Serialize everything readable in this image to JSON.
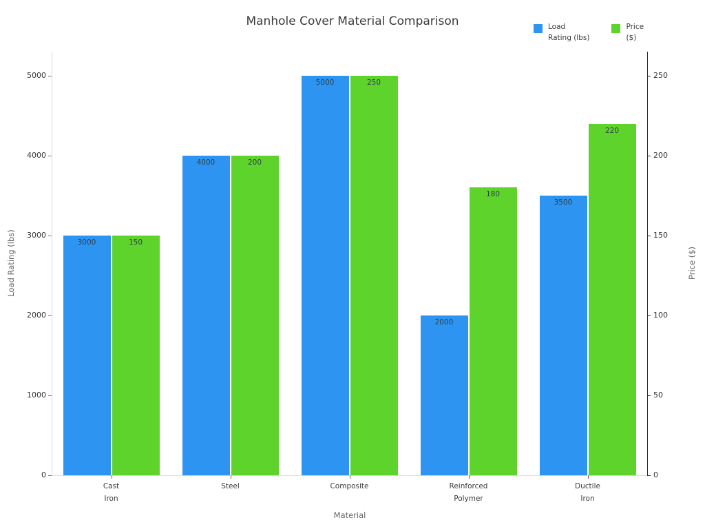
{
  "title": "Manhole Cover Material Comparison",
  "legend": [
    {
      "label": "Load\nRating (lbs)",
      "color": "#2e94f2"
    },
    {
      "label": "Price\n($)",
      "color": "#5ed32c"
    }
  ],
  "chart_data": {
    "type": "bar",
    "title": "Manhole Cover Material Comparison",
    "categories": [
      "Cast\nIron",
      "Steel",
      "Composite",
      "Reinforced\nPolymer",
      "Ductile\nIron"
    ],
    "series": [
      {
        "name": "Load Rating (lbs)",
        "axis": "left",
        "color": "#2e94f2",
        "values": [
          3000,
          4000,
          5000,
          2000,
          3500
        ]
      },
      {
        "name": "Price ($)",
        "axis": "right",
        "color": "#5ed32c",
        "values": [
          150,
          200,
          250,
          180,
          220
        ]
      }
    ],
    "xlabel": "Material",
    "ylabel_left": "Load Rating (lbs)",
    "ylabel_right": "Price ($)",
    "ylim_left": [
      0,
      5000
    ],
    "ylim_right": [
      0,
      250
    ],
    "yticks_left": [
      0,
      1000,
      2000,
      3000,
      4000,
      5000
    ],
    "yticks_right": [
      0,
      50,
      100,
      150,
      200,
      250
    ],
    "grid": false,
    "legend_position": "top-right",
    "bar_value_labels": true
  }
}
